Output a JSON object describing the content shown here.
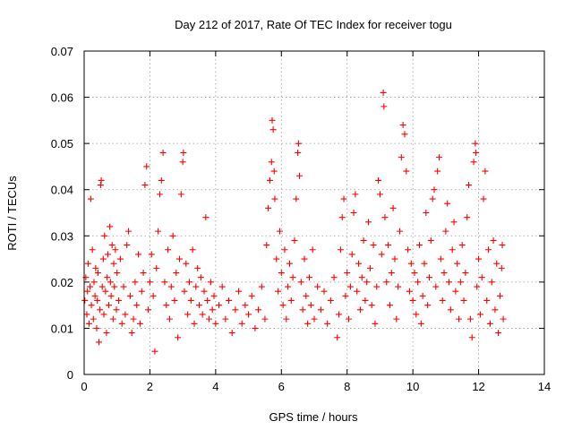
{
  "chart_data": {
    "type": "scatter",
    "title": "Day 212 of 2017, Rate Of TEC Index for receiver togu",
    "xlabel": "GPS time / hours",
    "ylabel": "ROTI / TECUs",
    "xlim": [
      0,
      14
    ],
    "ylim": [
      0,
      0.07
    ],
    "xticks": [
      "0",
      "2",
      "4",
      "6",
      "8",
      "10",
      "12",
      "14"
    ],
    "yticks": [
      "0",
      "0.01",
      "0.02",
      "0.03",
      "0.04",
      "0.05",
      "0.06",
      "0.07"
    ],
    "grid": true,
    "marker": "+",
    "color": "#ff0000",
    "series": [
      {
        "points": [
          [
            0.02,
            0.016
          ],
          [
            0.05,
            0.021
          ],
          [
            0.08,
            0.013
          ],
          [
            0.1,
            0.018
          ],
          [
            0.12,
            0.024
          ],
          [
            0.15,
            0.011
          ],
          [
            0.18,
            0.019
          ],
          [
            0.2,
            0.038
          ],
          [
            0.22,
            0.015
          ],
          [
            0.25,
            0.027
          ],
          [
            0.28,
            0.012
          ],
          [
            0.3,
            0.02
          ],
          [
            0.33,
            0.017
          ],
          [
            0.35,
            0.023
          ],
          [
            0.38,
            0.01
          ],
          [
            0.4,
            0.016
          ],
          [
            0.42,
            0.022
          ],
          [
            0.45,
            0.007
          ],
          [
            0.48,
            0.014
          ],
          [
            0.5,
            0.041
          ],
          [
            0.52,
            0.042
          ],
          [
            0.55,
            0.019
          ],
          [
            0.58,
            0.025
          ],
          [
            0.6,
            0.013
          ],
          [
            0.62,
            0.03
          ],
          [
            0.65,
            0.018
          ],
          [
            0.68,
            0.009
          ],
          [
            0.7,
            0.021
          ],
          [
            0.72,
            0.026
          ],
          [
            0.75,
            0.015
          ],
          [
            0.78,
            0.032
          ],
          [
            0.8,
            0.02
          ],
          [
            0.82,
            0.017
          ],
          [
            0.85,
            0.028
          ],
          [
            0.88,
            0.012
          ],
          [
            0.9,
            0.024
          ],
          [
            0.92,
            0.019
          ],
          [
            0.95,
            0.027
          ],
          [
            0.98,
            0.014
          ],
          [
            1.0,
            0.022
          ],
          [
            1.05,
            0.016
          ],
          [
            1.1,
            0.025
          ],
          [
            1.15,
            0.011
          ],
          [
            1.2,
            0.019
          ],
          [
            1.25,
            0.013
          ],
          [
            1.3,
            0.028
          ],
          [
            1.35,
            0.031
          ],
          [
            1.4,
            0.017
          ],
          [
            1.45,
            0.009
          ],
          [
            1.5,
            0.012
          ],
          [
            1.55,
            0.02
          ],
          [
            1.6,
            0.015
          ],
          [
            1.65,
            0.026
          ],
          [
            1.7,
            0.011
          ],
          [
            1.75,
            0.018
          ],
          [
            1.8,
            0.022
          ],
          [
            1.85,
            0.041
          ],
          [
            1.9,
            0.045
          ],
          [
            1.95,
            0.014
          ],
          [
            2.0,
            0.02
          ],
          [
            2.05,
            0.026
          ],
          [
            2.1,
            0.017
          ],
          [
            2.15,
            0.005
          ],
          [
            2.2,
            0.023
          ],
          [
            2.25,
            0.031
          ],
          [
            2.3,
            0.039
          ],
          [
            2.35,
            0.042
          ],
          [
            2.4,
            0.048
          ],
          [
            2.45,
            0.02
          ],
          [
            2.5,
            0.015
          ],
          [
            2.55,
            0.027
          ],
          [
            2.6,
            0.012
          ],
          [
            2.65,
            0.019
          ],
          [
            2.7,
            0.03
          ],
          [
            2.75,
            0.016
          ],
          [
            2.8,
            0.022
          ],
          [
            2.85,
            0.008
          ],
          [
            2.9,
            0.025
          ],
          [
            2.95,
            0.039
          ],
          [
            3.0,
            0.046
          ],
          [
            3.02,
            0.048
          ],
          [
            3.05,
            0.018
          ],
          [
            3.1,
            0.024
          ],
          [
            3.15,
            0.013
          ],
          [
            3.2,
            0.02
          ],
          [
            3.25,
            0.016
          ],
          [
            3.3,
            0.027
          ],
          [
            3.35,
            0.011
          ],
          [
            3.4,
            0.019
          ],
          [
            3.45,
            0.023
          ],
          [
            3.5,
            0.015
          ],
          [
            3.55,
            0.021
          ],
          [
            3.6,
            0.013
          ],
          [
            3.65,
            0.018
          ],
          [
            3.7,
            0.034
          ],
          [
            3.75,
            0.016
          ],
          [
            3.8,
            0.012
          ],
          [
            3.85,
            0.02
          ],
          [
            3.9,
            0.014
          ],
          [
            3.95,
            0.017
          ],
          [
            4.0,
            0.011
          ],
          [
            4.1,
            0.015
          ],
          [
            4.2,
            0.019
          ],
          [
            4.3,
            0.012
          ],
          [
            4.4,
            0.016
          ],
          [
            4.5,
            0.009
          ],
          [
            4.6,
            0.014
          ],
          [
            4.7,
            0.018
          ],
          [
            4.8,
            0.011
          ],
          [
            4.9,
            0.015
          ],
          [
            5.0,
            0.013
          ],
          [
            5.1,
            0.017
          ],
          [
            5.2,
            0.01
          ],
          [
            5.3,
            0.014
          ],
          [
            5.4,
            0.019
          ],
          [
            5.5,
            0.012
          ],
          [
            5.55,
            0.028
          ],
          [
            5.6,
            0.036
          ],
          [
            5.65,
            0.042
          ],
          [
            5.7,
            0.046
          ],
          [
            5.72,
            0.055
          ],
          [
            5.75,
            0.053
          ],
          [
            5.78,
            0.044
          ],
          [
            5.8,
            0.038
          ],
          [
            5.85,
            0.025
          ],
          [
            5.9,
            0.018
          ],
          [
            5.95,
            0.031
          ],
          [
            6.0,
            0.022
          ],
          [
            6.05,
            0.015
          ],
          [
            6.1,
            0.027
          ],
          [
            6.15,
            0.012
          ],
          [
            6.2,
            0.019
          ],
          [
            6.25,
            0.024
          ],
          [
            6.3,
            0.016
          ],
          [
            6.35,
            0.021
          ],
          [
            6.4,
            0.029
          ],
          [
            6.45,
            0.038
          ],
          [
            6.5,
            0.048
          ],
          [
            6.52,
            0.05
          ],
          [
            6.55,
            0.043
          ],
          [
            6.6,
            0.02
          ],
          [
            6.65,
            0.014
          ],
          [
            6.7,
            0.025
          ],
          [
            6.75,
            0.017
          ],
          [
            6.8,
            0.011
          ],
          [
            6.85,
            0.021
          ],
          [
            6.9,
            0.015
          ],
          [
            6.95,
            0.027
          ],
          [
            7.0,
            0.012
          ],
          [
            7.1,
            0.019
          ],
          [
            7.2,
            0.014
          ],
          [
            7.3,
            0.018
          ],
          [
            7.4,
            0.011
          ],
          [
            7.5,
            0.016
          ],
          [
            7.6,
            0.021
          ],
          [
            7.7,
            0.008
          ],
          [
            7.75,
            0.013
          ],
          [
            7.8,
            0.027
          ],
          [
            7.85,
            0.034
          ],
          [
            7.9,
            0.038
          ],
          [
            7.95,
            0.017
          ],
          [
            8.0,
            0.022
          ],
          [
            8.05,
            0.012
          ],
          [
            8.1,
            0.019
          ],
          [
            8.15,
            0.026
          ],
          [
            8.2,
            0.035
          ],
          [
            8.25,
            0.039
          ],
          [
            8.3,
            0.018
          ],
          [
            8.35,
            0.024
          ],
          [
            8.4,
            0.014
          ],
          [
            8.45,
            0.021
          ],
          [
            8.5,
            0.029
          ],
          [
            8.55,
            0.016
          ],
          [
            8.6,
            0.02
          ],
          [
            8.65,
            0.033
          ],
          [
            8.7,
            0.023
          ],
          [
            8.75,
            0.015
          ],
          [
            8.8,
            0.028
          ],
          [
            8.85,
            0.011
          ],
          [
            8.9,
            0.019
          ],
          [
            8.95,
            0.042
          ],
          [
            9.0,
            0.039
          ],
          [
            9.05,
            0.026
          ],
          [
            9.1,
            0.061
          ],
          [
            9.12,
            0.058
          ],
          [
            9.15,
            0.034
          ],
          [
            9.2,
            0.02
          ],
          [
            9.25,
            0.028
          ],
          [
            9.3,
            0.015
          ],
          [
            9.35,
            0.022
          ],
          [
            9.4,
            0.036
          ],
          [
            9.45,
            0.025
          ],
          [
            9.5,
            0.012
          ],
          [
            9.55,
            0.019
          ],
          [
            9.6,
            0.031
          ],
          [
            9.65,
            0.047
          ],
          [
            9.7,
            0.054
          ],
          [
            9.75,
            0.052
          ],
          [
            9.8,
            0.044
          ],
          [
            9.85,
            0.027
          ],
          [
            9.9,
            0.018
          ],
          [
            9.95,
            0.024
          ],
          [
            10.0,
            0.016
          ],
          [
            10.05,
            0.022
          ],
          [
            10.1,
            0.013
          ],
          [
            10.15,
            0.02
          ],
          [
            10.2,
            0.028
          ],
          [
            10.25,
            0.011
          ],
          [
            10.3,
            0.017
          ],
          [
            10.35,
            0.024
          ],
          [
            10.4,
            0.035
          ],
          [
            10.45,
            0.015
          ],
          [
            10.5,
            0.021
          ],
          [
            10.55,
            0.029
          ],
          [
            10.6,
            0.038
          ],
          [
            10.65,
            0.04
          ],
          [
            10.7,
            0.019
          ],
          [
            10.75,
            0.044
          ],
          [
            10.8,
            0.047
          ],
          [
            10.85,
            0.025
          ],
          [
            10.9,
            0.016
          ],
          [
            10.95,
            0.022
          ],
          [
            11.0,
            0.031
          ],
          [
            11.05,
            0.037
          ],
          [
            11.1,
            0.02
          ],
          [
            11.15,
            0.014
          ],
          [
            11.2,
            0.027
          ],
          [
            11.25,
            0.033
          ],
          [
            11.3,
            0.018
          ],
          [
            11.35,
            0.024
          ],
          [
            11.4,
            0.012
          ],
          [
            11.45,
            0.02
          ],
          [
            11.5,
            0.028
          ],
          [
            11.55,
            0.016
          ],
          [
            11.6,
            0.022
          ],
          [
            11.65,
            0.034
          ],
          [
            11.7,
            0.041
          ],
          [
            11.75,
            0.012
          ],
          [
            11.8,
            0.008
          ],
          [
            11.85,
            0.046
          ],
          [
            11.9,
            0.05
          ],
          [
            11.92,
            0.048
          ],
          [
            11.95,
            0.019
          ],
          [
            12.0,
            0.025
          ],
          [
            12.05,
            0.013
          ],
          [
            12.1,
            0.021
          ],
          [
            12.15,
            0.038
          ],
          [
            12.2,
            0.044
          ],
          [
            12.25,
            0.016
          ],
          [
            12.3,
            0.027
          ],
          [
            12.35,
            0.011
          ],
          [
            12.4,
            0.02
          ],
          [
            12.45,
            0.029
          ],
          [
            12.5,
            0.014
          ],
          [
            12.55,
            0.024
          ],
          [
            12.6,
            0.009
          ],
          [
            12.65,
            0.017
          ],
          [
            12.7,
            0.023
          ],
          [
            12.72,
            0.028
          ],
          [
            12.75,
            0.012
          ]
        ]
      }
    ]
  }
}
